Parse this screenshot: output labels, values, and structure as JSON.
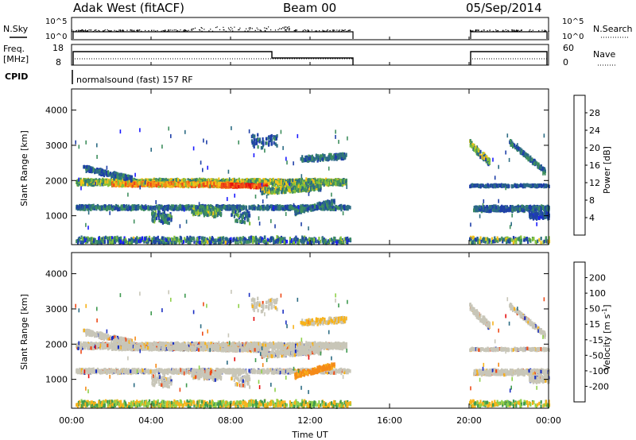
{
  "header": {
    "station": "Adak West (fitACF)",
    "beam": "Beam 00",
    "date": "05/Sep/2014"
  },
  "panels": {
    "nsky_label": "N.Sky",
    "nsky_ticks": [
      "10^5",
      "10^0"
    ],
    "nsearch_label": "N.Search",
    "nsearch_ticks": [
      "10^5",
      "10^0"
    ],
    "freq_label_line1": "Freq.",
    "freq_label_line2": "[MHz]",
    "freq_ticks": [
      "18",
      "8"
    ],
    "nave_label": "Nave",
    "nave_ticks": [
      "60",
      "0"
    ],
    "cpid_label": "CPID",
    "cpid_text": "normalsound (fast) 157 RF"
  },
  "colors": {
    "white": "#ffffff",
    "black": "#000000",
    "power_scale": [
      "#1a1aff",
      "#1e3fa8",
      "#2c6c84",
      "#3f8f5e",
      "#83c13a",
      "#f3c219",
      "#f58a18",
      "#ee4a18",
      "#e60f0f"
    ],
    "velocity_scale": [
      "#e60f0f",
      "#ee4a18",
      "#f58a18",
      "#f7b21a",
      "#c8c6b8",
      "#8fd04a",
      "#3f9a50",
      "#2c6c84",
      "#1a2fc2"
    ]
  },
  "chart_data": {
    "type": "heatmap",
    "time_axis": {
      "label": "Time UT",
      "ticks": [
        "00:00",
        "04:00",
        "08:00",
        "12:00",
        "16:00",
        "20:00",
        "00:00"
      ],
      "range_hours": [
        0,
        24
      ]
    },
    "range_axis": {
      "label": "Slant Range [km]",
      "ticks": [
        "1000",
        "2000",
        "3000",
        "4000"
      ],
      "range_km": [
        180,
        4600
      ]
    },
    "data_gaps_hours": [
      [
        14.0,
        20.0
      ]
    ],
    "power_panel": {
      "colorbar_label": "Power [dB]",
      "colorbar_ticks": [
        "4",
        "8",
        "12",
        "16",
        "20",
        "24",
        "28"
      ],
      "range_db": [
        0,
        32
      ]
    },
    "velocity_panel": {
      "colorbar_label": "Velocity [m s^-1]",
      "colorbar_ticks": [
        "-200",
        "-100",
        "-50",
        "-15",
        "15",
        "50",
        "100",
        "200"
      ]
    },
    "frequency_mhz": {
      "segments": [
        [
          0,
          10,
          13
        ],
        [
          10,
          14,
          10.5
        ],
        [
          20,
          24,
          13
        ]
      ]
    },
    "nave": {
      "value_approx": 15
    }
  }
}
